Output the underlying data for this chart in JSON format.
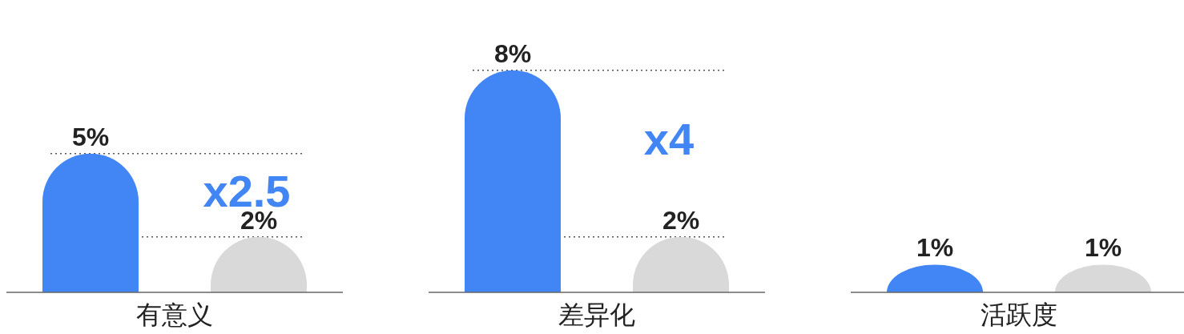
{
  "chart_data": [
    {
      "type": "bar",
      "xlabel": "有意义",
      "categories": [
        null,
        null
      ],
      "values": [
        5,
        2
      ],
      "colors": [
        "#4285f4",
        "#d9d9d9"
      ],
      "value_labels": [
        "5%",
        "2%"
      ],
      "annotations": [
        "x2.5"
      ],
      "ref_lines": [
        {
          "axis": "y",
          "value": 5,
          "line_style": "dotted",
          "color": "#555555"
        },
        {
          "axis": "y",
          "value": 2,
          "line_style": "dotted",
          "color": "#555555"
        }
      ]
    },
    {
      "type": "bar",
      "xlabel": "差异化",
      "categories": [
        null,
        null
      ],
      "values": [
        8,
        2
      ],
      "colors": [
        "#4285f4",
        "#d9d9d9"
      ],
      "value_labels": [
        "8%",
        "2%"
      ],
      "annotations": [
        "x4"
      ],
      "ref_lines": [
        {
          "axis": "y",
          "value": 8,
          "line_style": "dotted",
          "color": "#555555"
        },
        {
          "axis": "y",
          "value": 2,
          "line_style": "dotted",
          "color": "#555555"
        }
      ]
    },
    {
      "type": "bar",
      "xlabel": "活跃度",
      "categories": [
        null,
        null
      ],
      "values": [
        1,
        1
      ],
      "colors": [
        "#4285f4",
        "#d9d9d9"
      ],
      "value_labels": [
        "1%",
        "1%"
      ]
    }
  ]
}
